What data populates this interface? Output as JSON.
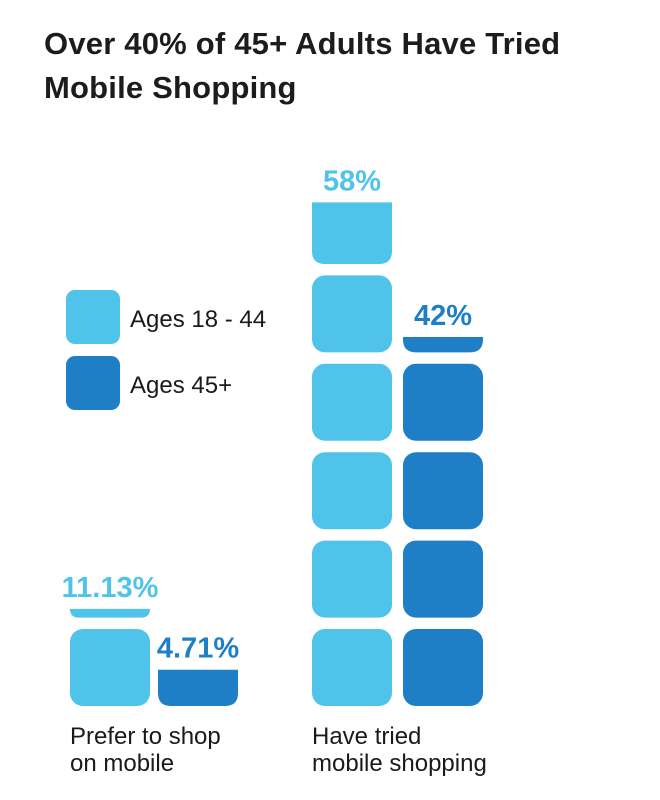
{
  "title": {
    "line1": "Over 40% of 45+ Adults Have Tried",
    "line2": "Mobile Shopping"
  },
  "colors": {
    "ages_18_44": "#4fc3ea",
    "ages_45_plus": "#1f7fc6"
  },
  "chart_data": {
    "type": "bar",
    "title": "Over 40% of 45+ Adults Have Tried Mobile Shopping",
    "categories": [
      "Prefer to shop on mobile",
      "Have tried mobile shopping"
    ],
    "category_lines": [
      [
        "Prefer to shop",
        "on mobile"
      ],
      [
        "Have tried",
        "mobile shopping"
      ]
    ],
    "series": [
      {
        "name": "Ages 18 - 44",
        "values": [
          11.13,
          58
        ],
        "labels": [
          "11.13%",
          "58%"
        ]
      },
      {
        "name": "Ages 45+",
        "values": [
          4.71,
          42
        ],
        "labels": [
          "4.71%",
          "42%"
        ]
      }
    ],
    "unit_per_block": 10,
    "legend_position": "left",
    "grid": false
  }
}
